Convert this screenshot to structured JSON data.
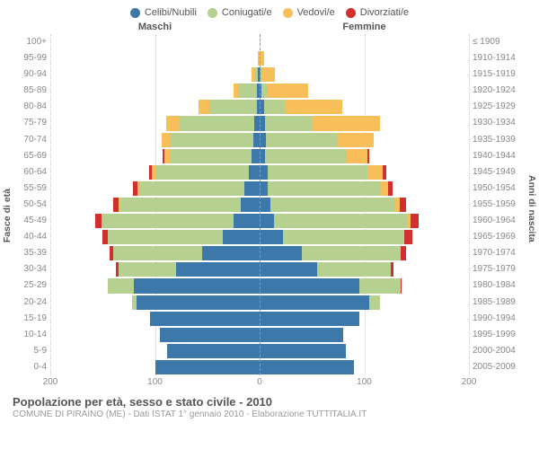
{
  "chart": {
    "type": "population-pyramid",
    "xlim": 200,
    "xticks": [
      200,
      100,
      0,
      100,
      200
    ],
    "background_color": "#ffffff",
    "grid_color": "#cccccc",
    "text_color": "#555555",
    "header_male": "Maschi",
    "header_female": "Femmine",
    "yaxis_left_title": "Fasce di età",
    "yaxis_right_title": "Anni di nascita",
    "legend": [
      {
        "label": "Celibi/Nubili",
        "color": "#3c78aa"
      },
      {
        "label": "Coniugati/e",
        "color": "#b6d090"
      },
      {
        "label": "Vedovi/e",
        "color": "#f8be5a"
      },
      {
        "label": "Divorziati/e",
        "color": "#d22f2f"
      }
    ],
    "rows": [
      {
        "age": "100+",
        "birth": "≤ 1909",
        "m": [
          0,
          0,
          0,
          0
        ],
        "f": [
          0,
          0,
          0,
          0
        ]
      },
      {
        "age": "95-99",
        "birth": "1910-1914",
        "m": [
          0,
          0,
          2,
          0
        ],
        "f": [
          0,
          0,
          4,
          0
        ]
      },
      {
        "age": "90-94",
        "birth": "1915-1919",
        "m": [
          2,
          3,
          3,
          0
        ],
        "f": [
          1,
          2,
          12,
          0
        ]
      },
      {
        "age": "85-89",
        "birth": "1920-1924",
        "m": [
          3,
          18,
          4,
          0
        ],
        "f": [
          2,
          6,
          38,
          0
        ]
      },
      {
        "age": "80-84",
        "birth": "1925-1929",
        "m": [
          3,
          45,
          10,
          0
        ],
        "f": [
          4,
          20,
          55,
          0
        ]
      },
      {
        "age": "75-79",
        "birth": "1930-1934",
        "m": [
          5,
          72,
          12,
          0
        ],
        "f": [
          5,
          45,
          65,
          0
        ]
      },
      {
        "age": "70-74",
        "birth": "1935-1939",
        "m": [
          6,
          80,
          8,
          0
        ],
        "f": [
          6,
          68,
          35,
          0
        ]
      },
      {
        "age": "65-69",
        "birth": "1940-1944",
        "m": [
          8,
          78,
          5,
          2
        ],
        "f": [
          5,
          78,
          20,
          2
        ]
      },
      {
        "age": "60-64",
        "birth": "1945-1949",
        "m": [
          10,
          90,
          3,
          3
        ],
        "f": [
          8,
          95,
          15,
          3
        ]
      },
      {
        "age": "55-59",
        "birth": "1950-1954",
        "m": [
          15,
          100,
          2,
          4
        ],
        "f": [
          8,
          108,
          7,
          4
        ]
      },
      {
        "age": "50-54",
        "birth": "1955-1959",
        "m": [
          18,
          115,
          2,
          5
        ],
        "f": [
          10,
          120,
          4,
          6
        ]
      },
      {
        "age": "45-49",
        "birth": "1960-1964",
        "m": [
          25,
          125,
          1,
          6
        ],
        "f": [
          14,
          128,
          2,
          8
        ]
      },
      {
        "age": "40-44",
        "birth": "1965-1969",
        "m": [
          35,
          110,
          0,
          5
        ],
        "f": [
          22,
          115,
          1,
          8
        ]
      },
      {
        "age": "35-39",
        "birth": "1970-1974",
        "m": [
          55,
          85,
          0,
          3
        ],
        "f": [
          40,
          95,
          0,
          5
        ]
      },
      {
        "age": "30-34",
        "birth": "1975-1979",
        "m": [
          80,
          55,
          0,
          2
        ],
        "f": [
          55,
          70,
          0,
          3
        ]
      },
      {
        "age": "25-29",
        "birth": "1980-1984",
        "m": [
          120,
          25,
          0,
          0
        ],
        "f": [
          95,
          40,
          0,
          1
        ]
      },
      {
        "age": "20-24",
        "birth": "1985-1989",
        "m": [
          118,
          4,
          0,
          0
        ],
        "f": [
          105,
          10,
          0,
          0
        ]
      },
      {
        "age": "15-19",
        "birth": "1990-1994",
        "m": [
          105,
          0,
          0,
          0
        ],
        "f": [
          95,
          0,
          0,
          0
        ]
      },
      {
        "age": "10-14",
        "birth": "1995-1999",
        "m": [
          95,
          0,
          0,
          0
        ],
        "f": [
          80,
          0,
          0,
          0
        ]
      },
      {
        "age": "5-9",
        "birth": "2000-2004",
        "m": [
          88,
          0,
          0,
          0
        ],
        "f": [
          82,
          0,
          0,
          0
        ]
      },
      {
        "age": "0-4",
        "birth": "2005-2009",
        "m": [
          100,
          0,
          0,
          0
        ],
        "f": [
          90,
          0,
          0,
          0
        ]
      }
    ]
  },
  "footer": {
    "title": "Popolazione per età, sesso e stato civile - 2010",
    "subtitle": "COMUNE DI PIRAINO (ME) - Dati ISTAT 1° gennaio 2010 - Elaborazione TUTTITALIA.IT"
  }
}
